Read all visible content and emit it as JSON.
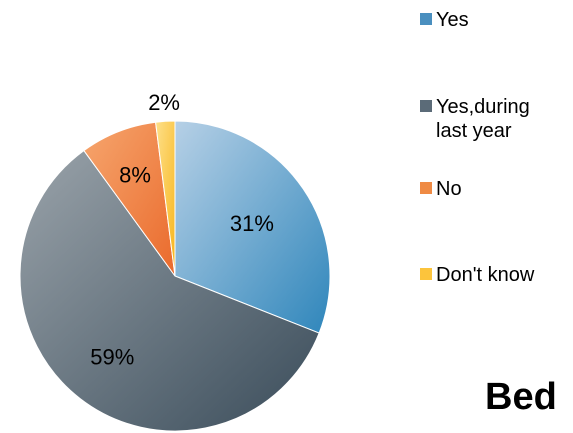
{
  "chart_data": {
    "type": "pie",
    "title": "",
    "categories": [
      "Yes",
      "Yes,during last year",
      "No",
      "Don't know"
    ],
    "values": [
      31,
      59,
      8,
      2
    ],
    "labels": [
      "31%",
      "59%",
      "8%",
      "2%"
    ],
    "colors": [
      "#4a8fbf",
      "#5b6b78",
      "#ef8a44",
      "#fcc43c"
    ],
    "legend_position": "right"
  },
  "legend": {
    "items": [
      {
        "label": "Yes",
        "color": "#4a8fbf"
      },
      {
        "label": "Yes,during\nlast year",
        "color": "#5b6b78"
      },
      {
        "label": "No",
        "color": "#ef8a44"
      },
      {
        "label": "Don't know",
        "color": "#fcc43c"
      }
    ]
  },
  "fragment": {
    "text": "Bed"
  }
}
